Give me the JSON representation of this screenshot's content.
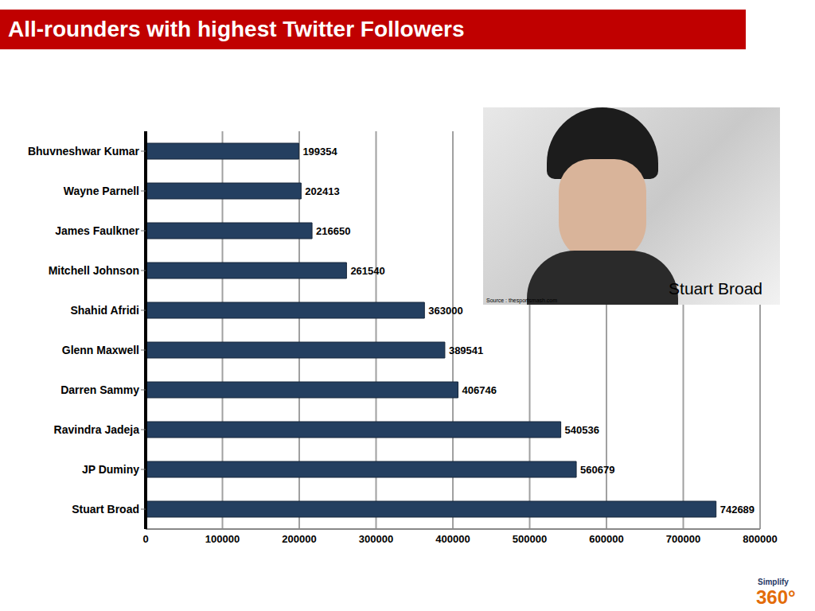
{
  "chart_data": {
    "type": "bar",
    "title": "All-rounders with highest Twitter Followers",
    "orientation": "horizontal",
    "categories": [
      "Bhuvneshwar Kumar",
      "Wayne Parnell",
      "James Faulkner",
      "Mitchell Johnson",
      "Shahid Afridi",
      "Glenn Maxwell",
      "Darren Sammy",
      "Ravindra Jadeja",
      "JP Duminy",
      "Stuart Broad"
    ],
    "values": [
      199354,
      202413,
      216650,
      261540,
      363000,
      389541,
      406746,
      540536,
      560679,
      742689
    ],
    "color": "#243f60",
    "xlim": [
      0,
      800000
    ],
    "xticks": [
      0,
      100000,
      200000,
      300000,
      400000,
      500000,
      600000,
      700000,
      800000
    ],
    "grid": true,
    "data_labels": true,
    "annotations": [
      "Stuart Broad",
      "Source : thesportsmash.com",
      "Simplify",
      "360°"
    ]
  }
}
